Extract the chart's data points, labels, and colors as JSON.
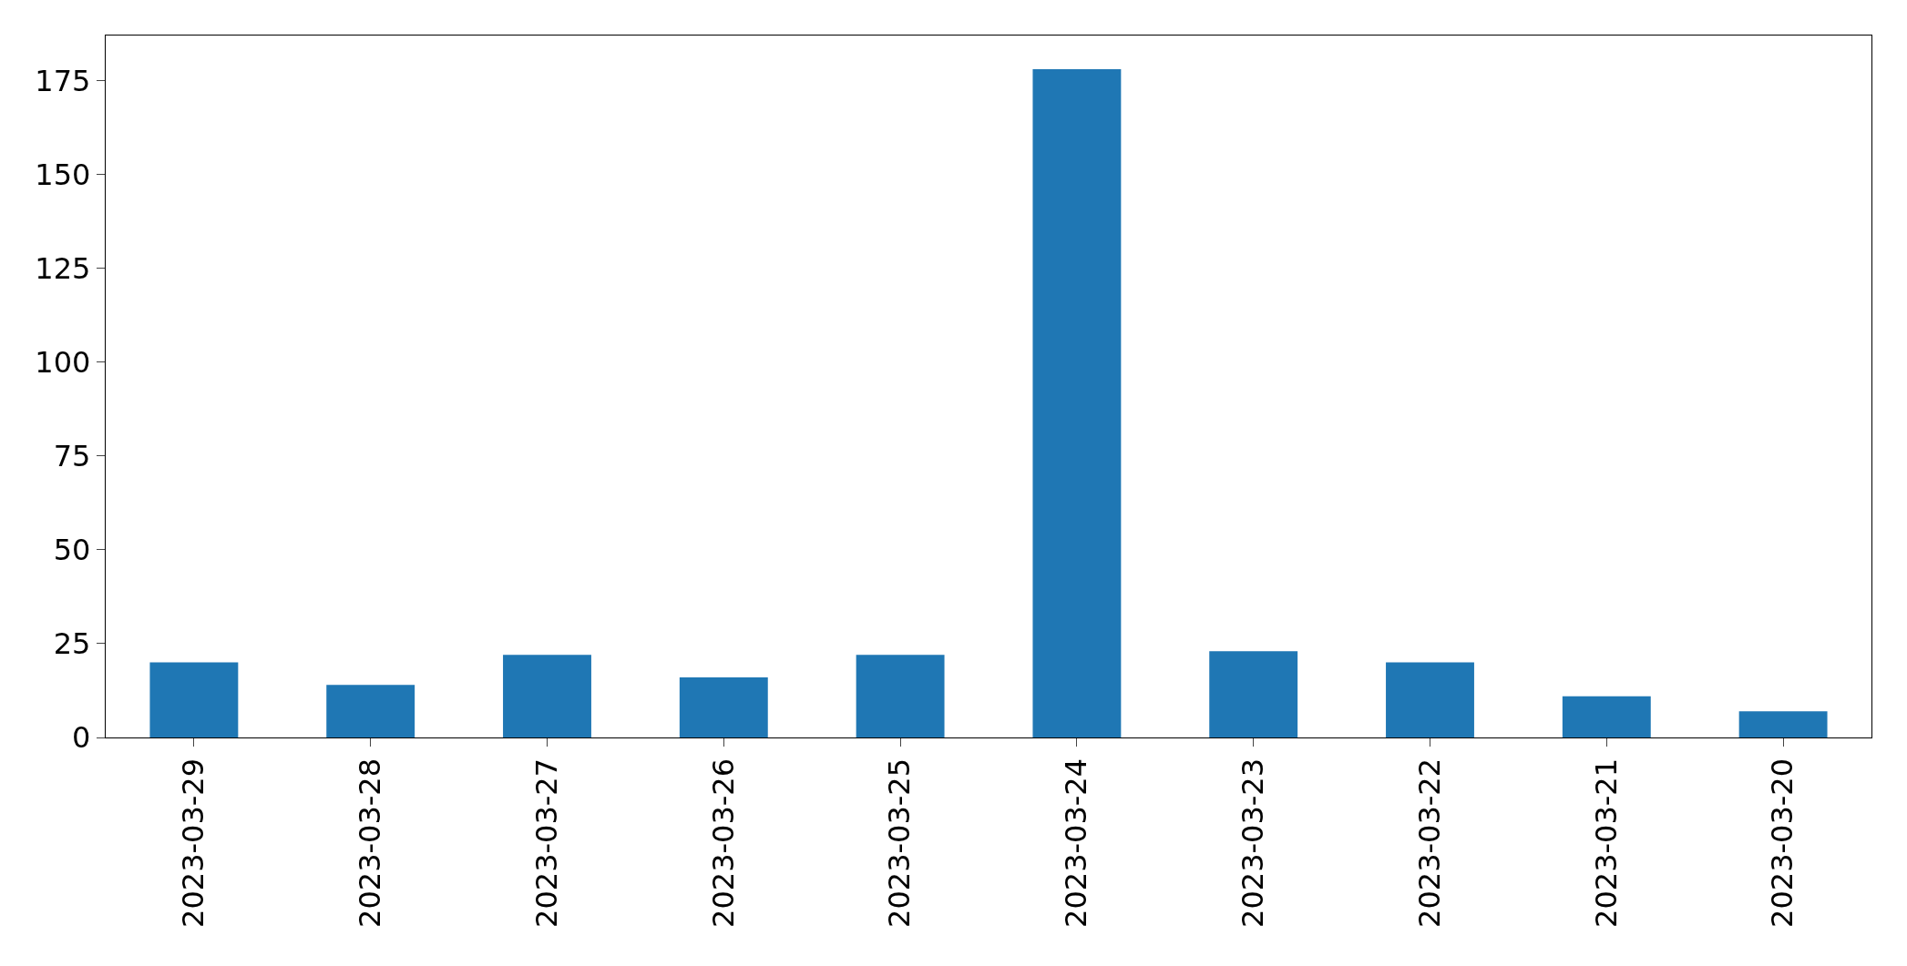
{
  "chart_data": {
    "type": "bar",
    "categories": [
      "2023-03-29",
      "2023-03-28",
      "2023-03-27",
      "2023-03-26",
      "2023-03-25",
      "2023-03-24",
      "2023-03-23",
      "2023-03-22",
      "2023-03-21",
      "2023-03-20"
    ],
    "values": [
      20,
      14,
      22,
      16,
      22,
      178,
      23,
      20,
      11,
      7
    ],
    "color": "#1f77b4",
    "ylim": [
      0,
      187
    ],
    "yticks": [
      0,
      25,
      50,
      75,
      100,
      125,
      150,
      175
    ],
    "grid": false
  }
}
